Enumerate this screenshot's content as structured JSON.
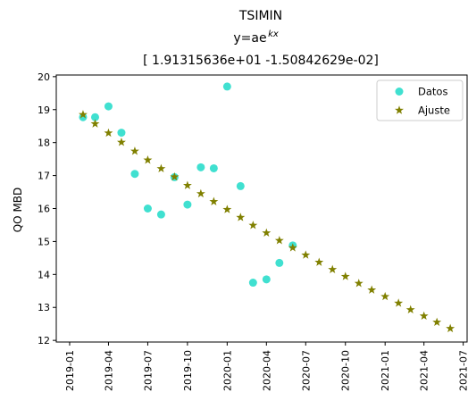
{
  "chart_data": {
    "type": "scatter",
    "title_lines": [
      "TSIMIN",
      "y=ae",
      "kx",
      "[ 1.91315636e+01 -1.50842629e-02]"
    ],
    "xlabel": "",
    "ylabel": "QO MBD",
    "ylim": [
      11.95,
      20.05
    ],
    "xlim": [
      "2018-12-01",
      "2021-07-10"
    ],
    "y_ticks": [
      12,
      13,
      14,
      15,
      16,
      17,
      18,
      19,
      20
    ],
    "x_ticks": [
      "2019-01",
      "2019-04",
      "2019-07",
      "2019-10",
      "2020-01",
      "2020-04",
      "2020-07",
      "2020-10",
      "2021-01",
      "2021-04",
      "2021-07"
    ],
    "legend": {
      "placement": "top-right",
      "entries": [
        "Datos",
        "Ajuste"
      ]
    },
    "series": [
      {
        "name": "Datos",
        "color": "#40e0d0",
        "marker": "circle",
        "points": [
          {
            "x": "2019-02-01",
            "y": 18.77
          },
          {
            "x": "2019-03-01",
            "y": 18.77
          },
          {
            "x": "2019-04-01",
            "y": 19.1
          },
          {
            "x": "2019-05-01",
            "y": 18.3
          },
          {
            "x": "2019-06-01",
            "y": 17.05
          },
          {
            "x": "2019-07-01",
            "y": 16.0
          },
          {
            "x": "2019-08-01",
            "y": 15.82
          },
          {
            "x": "2019-09-01",
            "y": 16.95
          },
          {
            "x": "2019-10-01",
            "y": 16.12
          },
          {
            "x": "2019-11-01",
            "y": 17.25
          },
          {
            "x": "2019-12-01",
            "y": 17.22
          },
          {
            "x": "2020-01-01",
            "y": 19.7
          },
          {
            "x": "2020-02-01",
            "y": 16.68
          },
          {
            "x": "2020-03-01",
            "y": 13.75
          },
          {
            "x": "2020-04-01",
            "y": 13.85
          },
          {
            "x": "2020-05-01",
            "y": 14.35
          },
          {
            "x": "2020-06-01",
            "y": 14.88
          }
        ]
      },
      {
        "name": "Ajuste",
        "color": "#808000",
        "marker": "star",
        "points": [
          {
            "x": "2019-02-01",
            "y": 18.85
          },
          {
            "x": "2019-03-01",
            "y": 18.57
          },
          {
            "x": "2019-04-01",
            "y": 18.29
          },
          {
            "x": "2019-05-01",
            "y": 18.01
          },
          {
            "x": "2019-06-01",
            "y": 17.74
          },
          {
            "x": "2019-07-01",
            "y": 17.47
          },
          {
            "x": "2019-08-01",
            "y": 17.21
          },
          {
            "x": "2019-09-01",
            "y": 16.96
          },
          {
            "x": "2019-10-01",
            "y": 16.7
          },
          {
            "x": "2019-11-01",
            "y": 16.45
          },
          {
            "x": "2019-12-01",
            "y": 16.21
          },
          {
            "x": "2020-01-01",
            "y": 15.97
          },
          {
            "x": "2020-02-01",
            "y": 15.73
          },
          {
            "x": "2020-03-01",
            "y": 15.49
          },
          {
            "x": "2020-04-01",
            "y": 15.26
          },
          {
            "x": "2020-05-01",
            "y": 15.03
          },
          {
            "x": "2020-06-01",
            "y": 14.81
          },
          {
            "x": "2020-07-01",
            "y": 14.59
          },
          {
            "x": "2020-08-01",
            "y": 14.37
          },
          {
            "x": "2020-09-01",
            "y": 14.15
          },
          {
            "x": "2020-10-01",
            "y": 13.94
          },
          {
            "x": "2020-11-01",
            "y": 13.73
          },
          {
            "x": "2020-12-01",
            "y": 13.53
          },
          {
            "x": "2021-01-01",
            "y": 13.33
          },
          {
            "x": "2021-02-01",
            "y": 13.13
          },
          {
            "x": "2021-03-01",
            "y": 12.93
          },
          {
            "x": "2021-04-01",
            "y": 12.74
          },
          {
            "x": "2021-05-01",
            "y": 12.55
          },
          {
            "x": "2021-06-01",
            "y": 12.36
          }
        ]
      }
    ]
  }
}
